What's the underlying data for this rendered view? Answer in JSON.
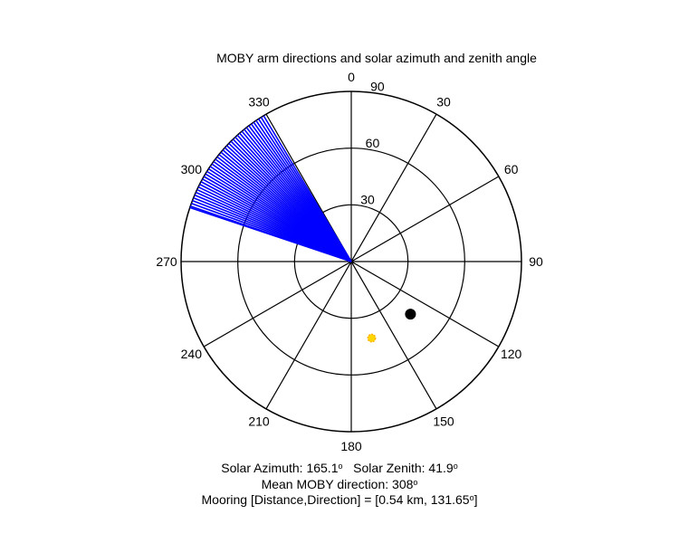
{
  "chart_data": {
    "type": "polar",
    "title": "MOBY arm directions and solar azimuth and zenith angle",
    "angle_labels": [
      "0",
      "30",
      "60",
      "90",
      "120",
      "150",
      "180",
      "210",
      "240",
      "270",
      "300",
      "330"
    ],
    "radial_labels": [
      "30",
      "60",
      "90"
    ],
    "radial_max": 90,
    "angle_direction": "clockwise, 0 at top",
    "series": [
      {
        "kind": "rays",
        "color": "#0000ff",
        "directions_deg": [
          288.5,
          289,
          290,
          291,
          292,
          293,
          294,
          295,
          296,
          297,
          298,
          299,
          300,
          301,
          302,
          303,
          304,
          305,
          306,
          307,
          308,
          309,
          310,
          311,
          312,
          313,
          314,
          315,
          316,
          317,
          318,
          319,
          320,
          321,
          322,
          323,
          324,
          325,
          326,
          327,
          328,
          329
        ]
      },
      {
        "kind": "point",
        "label": "solar",
        "color": "#ffd700",
        "azimuth_deg": 165.1,
        "zenith_deg": 41.9
      },
      {
        "kind": "point",
        "label": "mooring",
        "color": "#000000",
        "azimuth_deg": 131.65,
        "zenith_deg": 41.9
      }
    ]
  },
  "footer": {
    "line1_a": "Solar Azimuth: 165.1",
    "line1_b": "Solar Zenith: 41.9",
    "degree_mark": "o",
    "line2": "Mean MOBY direction: 308",
    "line3": "Mooring [Distance,Direction] = [0.54 km, 131.65",
    "line3_end": "]"
  }
}
